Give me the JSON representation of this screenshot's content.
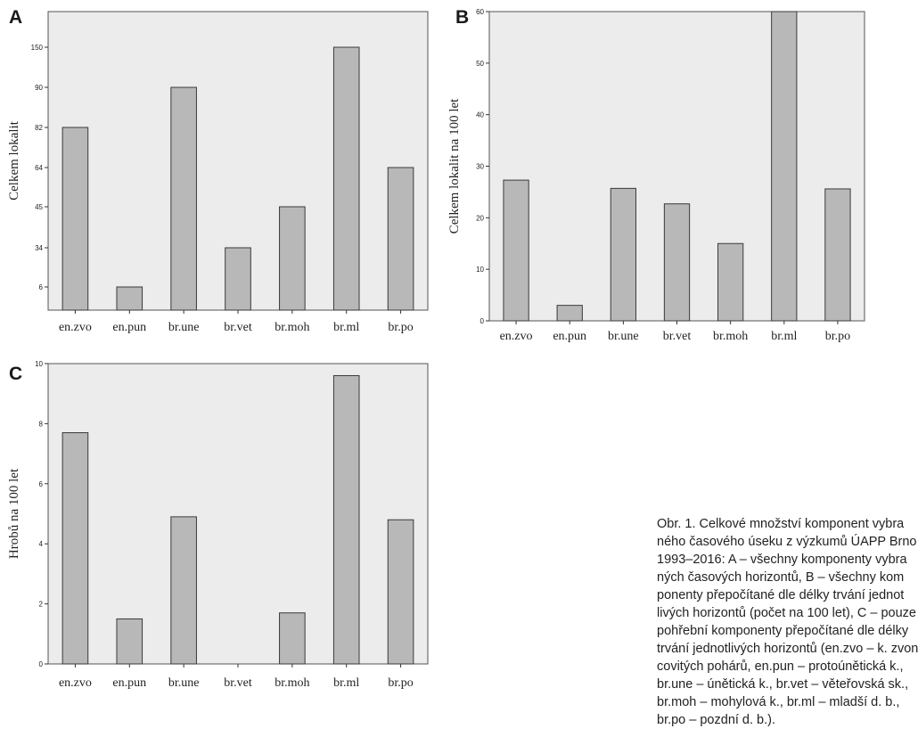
{
  "chart_data": [
    {
      "type": "bar",
      "panel": "A",
      "ylabel": "Celkem lokalit",
      "categories": [
        "en.zvo",
        "en.pun",
        "br.une",
        "br.vet",
        "br.moh",
        "br.ml",
        "br.po"
      ],
      "values": [
        82,
        6,
        90,
        34,
        45,
        150,
        64
      ],
      "yticks": [
        "6",
        "34",
        "45",
        "64",
        "82",
        "90",
        "150"
      ]
    },
    {
      "type": "bar",
      "panel": "B",
      "ylabel": "Celkem lokalit na 100 let",
      "categories": [
        "en.zvo",
        "en.pun",
        "br.une",
        "br.vet",
        "br.moh",
        "br.ml",
        "br.po"
      ],
      "values": [
        27.3,
        3,
        25.7,
        22.7,
        15,
        60,
        25.6
      ],
      "ylim": [
        0,
        60
      ],
      "yticks": [
        "0",
        "10",
        "20",
        "30",
        "40",
        "50",
        "60"
      ]
    },
    {
      "type": "bar",
      "panel": "C",
      "ylabel": "Hrobů na 100 let",
      "categories": [
        "en.zvo",
        "en.pun",
        "br.une",
        "br.vet",
        "br.moh",
        "br.ml",
        "br.po"
      ],
      "values": [
        7.7,
        1.5,
        4.9,
        0,
        1.7,
        9.6,
        4.8
      ],
      "ylim": [
        0,
        10
      ],
      "yticks": [
        "0",
        "2",
        "4",
        "6",
        "8",
        "10"
      ]
    }
  ],
  "caption_lines": [
    "Obr. 1. Celkové množství komponent vybra",
    "ného časového úseku z výzkumů ÚAPP Brno",
    "1993–2016: A – všechny komponenty vybra",
    "ných časových horizontů, B – všechny kom",
    "ponenty přepočítané dle délky trvání jednot",
    "livých horizontů (počet na 100 let), C – pouze",
    "pohřební komponenty přepočítané dle délky",
    "trvání jednotlivých horizontů (en.zvo – k. zvon",
    "covitých pohárů, en.pun – protoúnětická k.,",
    "br.une – únětická k., br.vet – věteřovská sk.,",
    "br.moh – mohylová k., br.ml – mladší d. b.,",
    "br.po – pozdní d. b.)."
  ],
  "colors": {
    "plot_bg": "#ececec",
    "bar_fill": "#b8b8b8",
    "bar_stroke": "#3a3a3a"
  }
}
